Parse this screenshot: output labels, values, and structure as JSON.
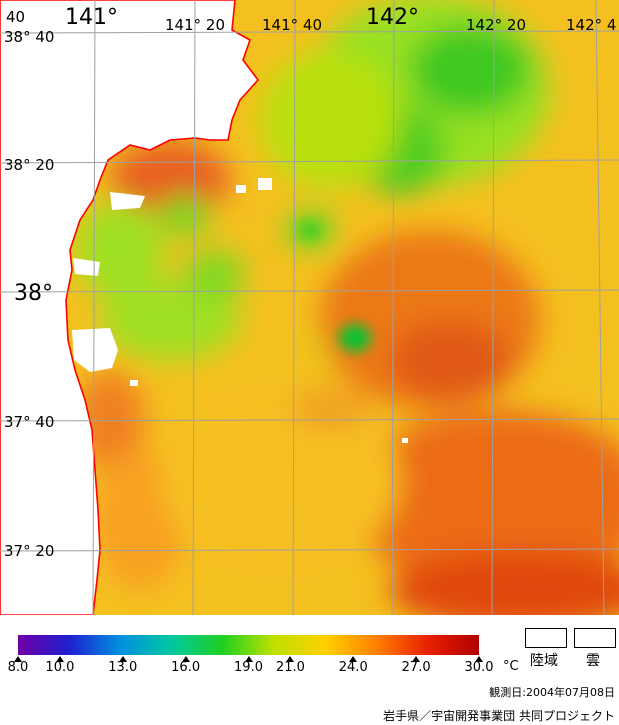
{
  "map": {
    "lon_labels": [
      {
        "text": "141°",
        "big": true
      },
      {
        "text": "141° 20",
        "big": false
      },
      {
        "text": "141° 40",
        "big": false
      },
      {
        "text": "142°",
        "big": true
      },
      {
        "text": "142° 20",
        "big": false
      },
      {
        "text": "142° 4",
        "big": false
      }
    ],
    "lat_labels": [
      {
        "text": "38° 40",
        "big": false
      },
      {
        "text": "38° 20",
        "big": false
      },
      {
        "text": "38°",
        "big": true
      },
      {
        "text": "37° 40",
        "big": false
      },
      {
        "text": "37° 20",
        "big": false
      }
    ],
    "corner_label": "40",
    "colors": {
      "coast": "#ff0000",
      "grid": "#a0a0a0",
      "land": "#ffffff",
      "sea_cool": "#a8e600",
      "sea_warm": "#f0a020",
      "sea_hot": "#e04a10"
    }
  },
  "colorbar": {
    "stops": [
      "#7000a8",
      "#2020d0",
      "#0090e0",
      "#00c8a0",
      "#20d020",
      "#c0e000",
      "#ffd000",
      "#ff8000",
      "#e82000",
      "#b00000"
    ],
    "ticks": [
      "8.0",
      "10.0",
      "13.0",
      "16.0",
      "19.0",
      "21.0",
      "24.0",
      "27.0",
      "30.0"
    ],
    "unit": "°C"
  },
  "legend": {
    "land_label": "陸域",
    "cloud_label": "雲"
  },
  "footer": {
    "obs_date": "観測日:2004年07月08日",
    "credit": "岩手県／宇宙開発事業団  共同プロジェクト"
  }
}
